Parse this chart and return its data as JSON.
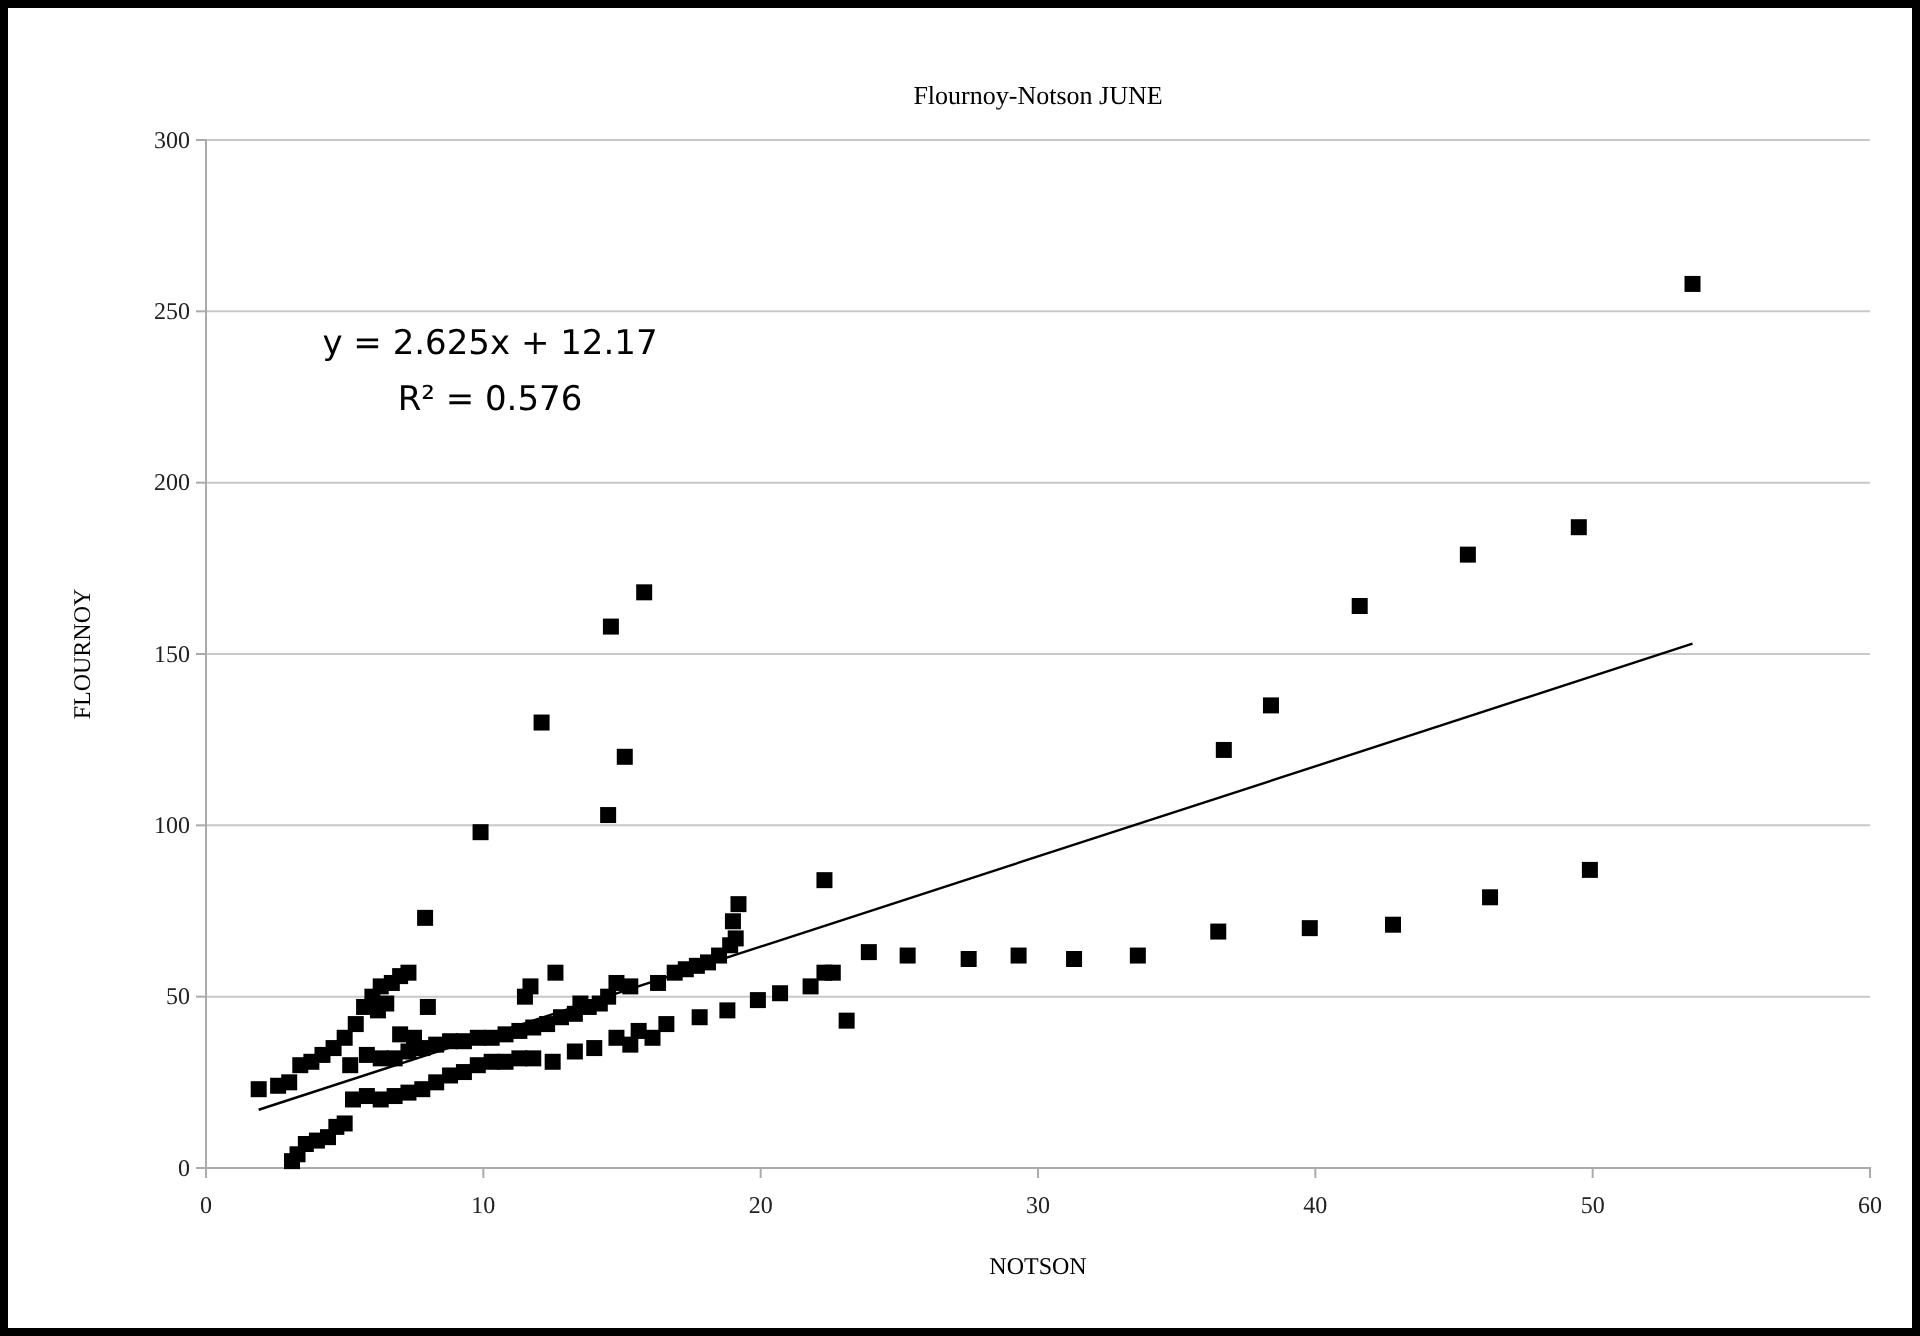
{
  "chart_data": {
    "type": "scatter",
    "title": "Flournoy-Notson  JUNE",
    "xlabel": "NOTSON",
    "ylabel": "FLOURNOY",
    "xlim": [
      0,
      60
    ],
    "xticks": [
      0,
      10,
      20,
      30,
      40,
      50,
      60
    ],
    "ylim": [
      0,
      300
    ],
    "yticks": [
      0,
      50,
      100,
      150,
      200,
      250,
      300
    ],
    "grid": "y",
    "marker": "square",
    "annotations": [
      "y = 2.625x + 12.17",
      "R² = 0.576"
    ],
    "series": [
      {
        "color": "#000000",
        "x": [
          53.6,
          49.5,
          45.5,
          41.6,
          38.4,
          36.7,
          49.9,
          46.3,
          42.8,
          39.8,
          36.5,
          33.6,
          31.3,
          29.3,
          27.5,
          25.3,
          23.9,
          23.1,
          22.6,
          22.3,
          22.3,
          21.8,
          20.7,
          19.9,
          18.8,
          17.8,
          16.6,
          16.1,
          15.8,
          14.6,
          15.1,
          14.5,
          12.1,
          9.9,
          7.9,
          8.0,
          19.2,
          19.0,
          19.1,
          18.9,
          18.5,
          18.1,
          17.7,
          17.3,
          16.9,
          16.3,
          15.3,
          14.8,
          14.5,
          3.1,
          3.3,
          3.6,
          4.0,
          4.4,
          4.7,
          5.0,
          1.9,
          2.6,
          3.0,
          3.4,
          3.8,
          4.2,
          4.6,
          5.0,
          5.4,
          5.7,
          6.0,
          6.3,
          6.7,
          7.0,
          7.3,
          6.2,
          6.5,
          5.2,
          5.8,
          6.3,
          6.8,
          7.3,
          7.8,
          8.3,
          8.8,
          9.3,
          9.8,
          10.3,
          10.8,
          11.3,
          11.8,
          12.3,
          12.8,
          13.3,
          13.8,
          7.0,
          7.5,
          11.5,
          11.7,
          12.6,
          13.5,
          14.2,
          5.3,
          5.8,
          6.3,
          6.8,
          7.3,
          7.8,
          8.3,
          8.8,
          9.3,
          9.8,
          10.3,
          10.8,
          11.3,
          11.8,
          12.5,
          13.3,
          14.0,
          14.8,
          15.3,
          15.6
        ],
        "values": [
          258,
          187,
          179,
          164,
          135,
          122,
          87,
          79,
          71,
          70,
          69,
          62,
          61,
          62,
          61,
          62,
          63,
          43,
          57,
          57,
          84,
          53,
          51,
          49,
          46,
          44,
          42,
          38,
          168,
          158,
          120,
          103,
          130,
          98,
          73,
          47,
          77,
          72,
          67,
          65,
          62,
          60,
          59,
          58,
          57,
          54,
          53,
          54,
          50,
          2,
          4,
          7,
          8,
          9,
          12,
          13,
          23,
          24,
          25,
          30,
          31,
          33,
          35,
          38,
          42,
          47,
          50,
          53,
          54,
          56,
          57,
          46,
          48,
          30,
          33,
          32,
          32,
          34,
          35,
          36,
          37,
          37,
          38,
          38,
          39,
          40,
          41,
          42,
          44,
          45,
          47,
          39,
          38,
          50,
          53,
          57,
          48,
          48,
          20,
          21,
          20,
          21,
          22,
          23,
          25,
          27,
          28,
          30,
          31,
          31,
          32,
          32,
          31,
          34,
          35,
          38,
          36,
          40
        ]
      },
      {
        "type": "line",
        "color": "#000000",
        "x": [
          1.9,
          53.6
        ],
        "values": [
          17,
          153
        ],
        "marker": "none"
      }
    ]
  }
}
